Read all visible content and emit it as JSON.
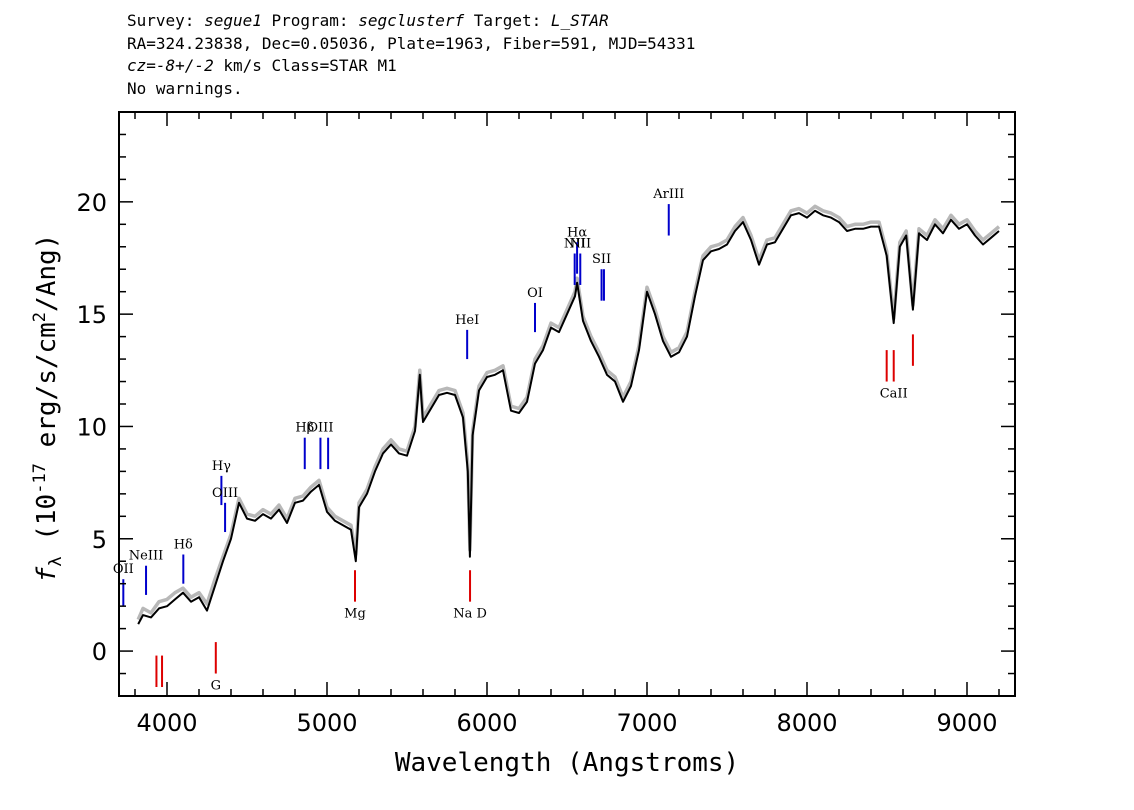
{
  "header": {
    "line1_prefix": "Survey: ",
    "survey": "segue1",
    "line1_mid1": " Program: ",
    "program": "segclusterf",
    "line1_mid2": " Target: ",
    "target": "L_STAR",
    "line2": "RA=324.23838, Dec=0.05036, Plate=1963, Fiber=591, MJD=54331",
    "line3_cz": "cz=-8+/-2",
    "line3_rest": " km/s Class=STAR M1",
    "line4": "No warnings."
  },
  "chart_data": {
    "type": "line",
    "title": "",
    "xlabel": "Wavelength (Angstroms)",
    "ylabel_symbol": "f",
    "ylabel_subscript": "λ",
    "ylabel_text_pre": " (10",
    "ylabel_exp": "-17",
    "ylabel_text_mid": " erg/s/cm",
    "ylabel_exp2": "2",
    "ylabel_text_post": "/Ang)",
    "xlim": [
      3700,
      9300
    ],
    "ylim": [
      -2,
      24
    ],
    "xticks": [
      4000,
      5000,
      6000,
      7000,
      8000,
      9000
    ],
    "xtick_labels": [
      "4000",
      "5000",
      "6000",
      "7000",
      "8000",
      "9000"
    ],
    "yticks": [
      0,
      5,
      10,
      15,
      20
    ],
    "ytick_labels": [
      "0",
      "5",
      "10",
      "15",
      "20"
    ],
    "series": [
      {
        "style": "noise",
        "color": "#b8b8b8",
        "x": [
          3820,
          3850,
          3900,
          3950,
          4000,
          4050,
          4100,
          4150,
          4200,
          4250,
          4300,
          4350,
          4400,
          4450,
          4500,
          4550,
          4600,
          4650,
          4700,
          4750,
          4800,
          4850,
          4900,
          4950,
          5000,
          5050,
          5100,
          5150,
          5180,
          5200,
          5250,
          5300,
          5350,
          5400,
          5450,
          5500,
          5550,
          5580,
          5600,
          5650,
          5700,
          5750,
          5800,
          5850,
          5880,
          5893,
          5910,
          5950,
          6000,
          6050,
          6100,
          6150,
          6200,
          6250,
          6300,
          6350,
          6400,
          6450,
          6500,
          6550,
          6563,
          6600,
          6650,
          6700,
          6750,
          6800,
          6850,
          6900,
          6950,
          7000,
          7050,
          7100,
          7150,
          7200,
          7250,
          7300,
          7350,
          7400,
          7450,
          7500,
          7550,
          7600,
          7650,
          7700,
          7750,
          7800,
          7850,
          7900,
          7950,
          8000,
          8050,
          8100,
          8150,
          8200,
          8250,
          8300,
          8350,
          8400,
          8450,
          8498,
          8542,
          8580,
          8620,
          8662,
          8700,
          8750,
          8800,
          8850,
          8900,
          8950,
          9000,
          9050,
          9100,
          9150,
          9200
        ],
        "values": [
          1.4,
          1.9,
          1.7,
          2.2,
          2.3,
          2.6,
          2.8,
          2.4,
          2.6,
          2.1,
          3.2,
          4.2,
          5.2,
          6.8,
          6.1,
          6.0,
          6.3,
          6.1,
          6.5,
          5.9,
          6.8,
          6.9,
          7.3,
          7.6,
          6.4,
          6.0,
          5.8,
          5.6,
          4.3,
          6.6,
          7.2,
          8.2,
          9.0,
          9.4,
          9.0,
          8.9,
          10.0,
          12.5,
          10.4,
          11.0,
          11.6,
          11.7,
          11.6,
          10.6,
          8.3,
          4.5,
          9.8,
          11.8,
          12.4,
          12.5,
          12.7,
          10.9,
          10.8,
          11.3,
          13.0,
          13.6,
          14.6,
          14.4,
          15.2,
          16.0,
          16.6,
          14.9,
          14.0,
          13.3,
          12.5,
          12.2,
          11.3,
          12.0,
          13.6,
          16.2,
          15.2,
          14.0,
          13.3,
          13.5,
          14.2,
          16.0,
          17.6,
          18.0,
          18.1,
          18.3,
          18.9,
          19.3,
          18.5,
          17.4,
          18.3,
          18.4,
          19.0,
          19.6,
          19.7,
          19.5,
          19.8,
          19.6,
          19.5,
          19.3,
          18.9,
          19.0,
          19.0,
          19.1,
          19.1,
          17.8,
          14.8,
          18.2,
          18.7,
          15.4,
          18.8,
          18.5,
          19.2,
          18.8,
          19.4,
          19.0,
          19.2,
          18.7,
          18.3,
          18.6,
          18.9
        ]
      },
      {
        "style": "flux",
        "color": "#000000",
        "x": [
          3820,
          3850,
          3900,
          3950,
          4000,
          4050,
          4100,
          4150,
          4200,
          4250,
          4300,
          4350,
          4400,
          4450,
          4500,
          4550,
          4600,
          4650,
          4700,
          4750,
          4800,
          4850,
          4900,
          4950,
          5000,
          5050,
          5100,
          5150,
          5180,
          5200,
          5250,
          5300,
          5350,
          5400,
          5450,
          5500,
          5550,
          5580,
          5600,
          5650,
          5700,
          5750,
          5800,
          5850,
          5880,
          5893,
          5910,
          5950,
          6000,
          6050,
          6100,
          6150,
          6200,
          6250,
          6300,
          6350,
          6400,
          6450,
          6500,
          6550,
          6563,
          6600,
          6650,
          6700,
          6750,
          6800,
          6850,
          6900,
          6950,
          7000,
          7050,
          7100,
          7150,
          7200,
          7250,
          7300,
          7350,
          7400,
          7450,
          7500,
          7550,
          7600,
          7650,
          7700,
          7750,
          7800,
          7850,
          7900,
          7950,
          8000,
          8050,
          8100,
          8150,
          8200,
          8250,
          8300,
          8350,
          8400,
          8450,
          8498,
          8542,
          8580,
          8620,
          8662,
          8700,
          8750,
          8800,
          8850,
          8900,
          8950,
          9000,
          9050,
          9100,
          9150,
          9200
        ],
        "values": [
          1.2,
          1.6,
          1.5,
          1.9,
          2.0,
          2.3,
          2.6,
          2.2,
          2.4,
          1.8,
          2.9,
          4.0,
          5.0,
          6.6,
          5.9,
          5.8,
          6.1,
          5.9,
          6.3,
          5.7,
          6.6,
          6.7,
          7.1,
          7.4,
          6.2,
          5.8,
          5.6,
          5.4,
          4.0,
          6.4,
          7.0,
          8.0,
          8.8,
          9.2,
          8.8,
          8.7,
          9.8,
          12.3,
          10.2,
          10.8,
          11.4,
          11.5,
          11.4,
          10.4,
          8.0,
          4.2,
          9.6,
          11.6,
          12.2,
          12.3,
          12.5,
          10.7,
          10.6,
          11.1,
          12.8,
          13.4,
          14.4,
          14.2,
          15.0,
          15.8,
          16.4,
          14.7,
          13.8,
          13.1,
          12.3,
          12.0,
          11.1,
          11.8,
          13.4,
          16.0,
          15.0,
          13.8,
          13.1,
          13.3,
          14.0,
          15.8,
          17.4,
          17.8,
          17.9,
          18.1,
          18.7,
          19.1,
          18.3,
          17.2,
          18.1,
          18.2,
          18.8,
          19.4,
          19.5,
          19.3,
          19.6,
          19.4,
          19.3,
          19.1,
          18.7,
          18.8,
          18.8,
          18.9,
          18.9,
          17.6,
          14.6,
          18.0,
          18.5,
          15.2,
          18.6,
          18.3,
          19.0,
          18.6,
          19.2,
          18.8,
          19.0,
          18.5,
          18.1,
          18.4,
          18.7
        ]
      }
    ],
    "emission_lines": [
      {
        "label": "OII",
        "wavelength": 3727,
        "ymin": 2.0,
        "ymax": 3.2,
        "color": "#0000cc"
      },
      {
        "label": "NeIII",
        "wavelength": 3869,
        "ymin": 2.5,
        "ymax": 3.8,
        "color": "#0000cc"
      },
      {
        "label": "Hδ",
        "wavelength": 4102,
        "ymin": 3.0,
        "ymax": 4.3,
        "color": "#0000cc"
      },
      {
        "label": "Hγ",
        "wavelength": 4340,
        "ymin": 6.5,
        "ymax": 7.8,
        "color": "#0000cc"
      },
      {
        "label": "OIII",
        "wavelength": 4363,
        "ymin": 5.3,
        "ymax": 6.6,
        "color": "#0000cc"
      },
      {
        "label": "Hβ",
        "wavelength": 4861,
        "ymin": 8.1,
        "ymax": 9.5,
        "color": "#0000cc"
      },
      {
        "label": "OIII",
        "wavelength": 4959,
        "ymin": 8.1,
        "ymax": 9.5,
        "color": "#0000cc"
      },
      {
        "label": "",
        "wavelength": 5007,
        "ymin": 8.1,
        "ymax": 9.5,
        "color": "#0000cc"
      },
      {
        "label": "HeI",
        "wavelength": 5876,
        "ymin": 13.0,
        "ymax": 14.3,
        "color": "#0000cc"
      },
      {
        "label": "OI",
        "wavelength": 6300,
        "ymin": 14.2,
        "ymax": 15.5,
        "color": "#0000cc"
      },
      {
        "label": "NII",
        "wavelength": 6548,
        "ymin": 16.3,
        "ymax": 17.7,
        "color": "#0000cc"
      },
      {
        "label": "Hα",
        "wavelength": 6563,
        "ymin": 16.8,
        "ymax": 18.2,
        "color": "#0000cc"
      },
      {
        "label": "NII",
        "wavelength": 6583,
        "ymin": 16.3,
        "ymax": 17.7,
        "color": "#0000cc"
      },
      {
        "label": "SII",
        "wavelength": 6716,
        "ymin": 15.6,
        "ymax": 17.0,
        "color": "#0000cc"
      },
      {
        "label": "",
        "wavelength": 6731,
        "ymin": 15.6,
        "ymax": 17.0,
        "color": "#0000cc"
      },
      {
        "label": "ArIII",
        "wavelength": 7136,
        "ymin": 18.5,
        "ymax": 19.9,
        "color": "#0000cc"
      }
    ],
    "absorption_lines": [
      {
        "label": "",
        "wavelength": 3934,
        "ymin": -1.6,
        "ymax": -0.2,
        "color": "#dd0000"
      },
      {
        "label": "",
        "wavelength": 3969,
        "ymin": -1.6,
        "ymax": -0.2,
        "color": "#dd0000"
      },
      {
        "label": "G",
        "wavelength": 4305,
        "ymin": -1.0,
        "ymax": 0.4,
        "color": "#dd0000"
      },
      {
        "label": "Mg",
        "wavelength": 5175,
        "ymin": 2.2,
        "ymax": 3.6,
        "color": "#dd0000"
      },
      {
        "label": "Na D",
        "wavelength": 5894,
        "ymin": 2.2,
        "ymax": 3.6,
        "color": "#dd0000"
      },
      {
        "label": "",
        "wavelength": 8498,
        "ymin": 12.0,
        "ymax": 13.4,
        "color": "#dd0000"
      },
      {
        "label": "CaII",
        "wavelength": 8542,
        "ymin": 12.0,
        "ymax": 13.4,
        "color": "#dd0000"
      },
      {
        "label": "",
        "wavelength": 8662,
        "ymin": 12.7,
        "ymax": 14.1,
        "color": "#dd0000"
      }
    ]
  }
}
